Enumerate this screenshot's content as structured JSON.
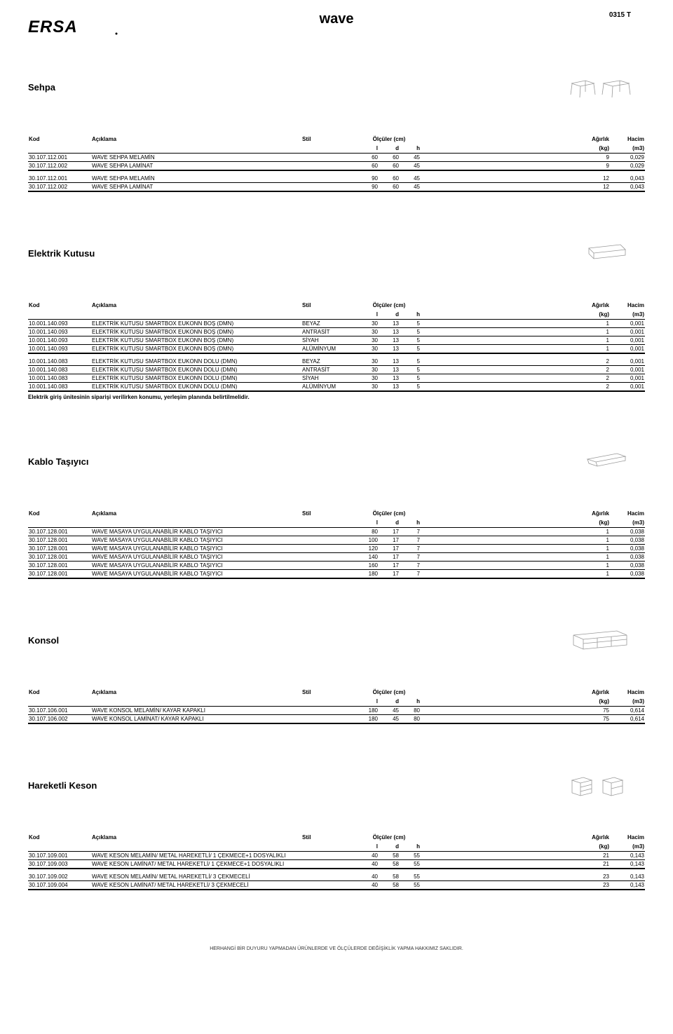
{
  "header": {
    "title": "wave",
    "code": "0315 T",
    "logo": "ERSA"
  },
  "labels": {
    "kod": "Kod",
    "aciklama": "Açıklama",
    "stil": "Stil",
    "olculer": "Ölçüler (cm)",
    "l": "l",
    "d": "d",
    "h": "h",
    "agirlik": "Ağırlık",
    "kg": "(kg)",
    "hacim": "Hacim",
    "m3": "(m3)"
  },
  "sections": [
    {
      "title": "Sehpa",
      "groups": [
        [
          {
            "kod": "30.107.112.001",
            "acik": "WAVE SEHPA MELAMİN",
            "stil": "",
            "l": "60",
            "d": "60",
            "h": "45",
            "ag": "9",
            "ha": "0,029"
          },
          {
            "kod": "30.107.112.002",
            "acik": "WAVE SEHPA LAMİNAT",
            "stil": "",
            "l": "60",
            "d": "60",
            "h": "45",
            "ag": "9",
            "ha": "0,029"
          }
        ],
        [
          {
            "kod": "30.107.112.001",
            "acik": "WAVE SEHPA MELAMİN",
            "stil": "",
            "l": "90",
            "d": "60",
            "h": "45",
            "ag": "12",
            "ha": "0,043"
          },
          {
            "kod": "30.107.112.002",
            "acik": "WAVE SEHPA LAMİNAT",
            "stil": "",
            "l": "90",
            "d": "60",
            "h": "45",
            "ag": "12",
            "ha": "0,043"
          }
        ]
      ]
    },
    {
      "title": "Elektrik Kutusu",
      "groups": [
        [
          {
            "kod": "10.001.140.093",
            "acik": "ELEKTRİK KUTUSU SMARTBOX EUKONN BOŞ (DMN)",
            "stil": "BEYAZ",
            "l": "30",
            "d": "13",
            "h": "5",
            "ag": "1",
            "ha": "0,001"
          },
          {
            "kod": "10.001.140.093",
            "acik": "ELEKTRİK KUTUSU SMARTBOX EUKONN BOŞ (DMN)",
            "stil": "ANTRASİT",
            "l": "30",
            "d": "13",
            "h": "5",
            "ag": "1",
            "ha": "0,001"
          },
          {
            "kod": "10.001.140.093",
            "acik": "ELEKTRİK KUTUSU SMARTBOX EUKONN BOŞ (DMN)",
            "stil": "SİYAH",
            "l": "30",
            "d": "13",
            "h": "5",
            "ag": "1",
            "ha": "0,001"
          },
          {
            "kod": "10.001.140.093",
            "acik": "ELEKTRİK KUTUSU SMARTBOX EUKONN BOŞ (DMN)",
            "stil": "ALÜMİNYUM",
            "l": "30",
            "d": "13",
            "h": "5",
            "ag": "1",
            "ha": "0,001"
          }
        ],
        [
          {
            "kod": "10.001.140.083",
            "acik": "ELEKTRİK KUTUSU SMARTBOX EUKONN DOLU (DMN)",
            "stil": "BEYAZ",
            "l": "30",
            "d": "13",
            "h": "5",
            "ag": "2",
            "ha": "0,001"
          },
          {
            "kod": "10.001.140.083",
            "acik": "ELEKTRİK KUTUSU SMARTBOX EUKONN DOLU (DMN)",
            "stil": "ANTRASİT",
            "l": "30",
            "d": "13",
            "h": "5",
            "ag": "2",
            "ha": "0,001"
          },
          {
            "kod": "10.001.140.083",
            "acik": "ELEKTRİK KUTUSU SMARTBOX EUKONN DOLU (DMN)",
            "stil": "SİYAH",
            "l": "30",
            "d": "13",
            "h": "5",
            "ag": "2",
            "ha": "0,001"
          },
          {
            "kod": "10.001.140.083",
            "acik": "ELEKTRİK KUTUSU SMARTBOX EUKONN DOLU (DMN)",
            "stil": "ALÜMİNYUM",
            "l": "30",
            "d": "13",
            "h": "5",
            "ag": "2",
            "ha": "0,001"
          }
        ]
      ],
      "note": "Elektrik giriş ünitesinin siparişi verilirken konumu, yerleşim planında belirtilmelidir."
    },
    {
      "title": "Kablo Taşıyıcı",
      "groups": [
        [
          {
            "kod": "30.107.128.001",
            "acik": "WAVE MASAYA UYGULANABİLİR KABLO TAŞIYICI",
            "stil": "",
            "l": "80",
            "d": "17",
            "h": "7",
            "ag": "1",
            "ha": "0,038"
          },
          {
            "kod": "30.107.128.001",
            "acik": "WAVE MASAYA UYGULANABİLİR KABLO TAŞIYICI",
            "stil": "",
            "l": "100",
            "d": "17",
            "h": "7",
            "ag": "1",
            "ha": "0,038"
          },
          {
            "kod": "30.107.128.001",
            "acik": "WAVE MASAYA UYGULANABİLİR KABLO TAŞIYICI",
            "stil": "",
            "l": "120",
            "d": "17",
            "h": "7",
            "ag": "1",
            "ha": "0,038"
          },
          {
            "kod": "30.107.128.001",
            "acik": "WAVE MASAYA UYGULANABİLİR KABLO TAŞIYICI",
            "stil": "",
            "l": "140",
            "d": "17",
            "h": "7",
            "ag": "1",
            "ha": "0,038"
          },
          {
            "kod": "30.107.128.001",
            "acik": "WAVE MASAYA UYGULANABİLİR KABLO TAŞIYICI",
            "stil": "",
            "l": "160",
            "d": "17",
            "h": "7",
            "ag": "1",
            "ha": "0,038"
          },
          {
            "kod": "30.107.128.001",
            "acik": "WAVE MASAYA UYGULANABİLİR KABLO TAŞIYICI",
            "stil": "",
            "l": "180",
            "d": "17",
            "h": "7",
            "ag": "1",
            "ha": "0,038"
          }
        ]
      ]
    },
    {
      "title": "Konsol",
      "groups": [
        [
          {
            "kod": "30.107.106.001",
            "acik": "WAVE KONSOL MELAMİN/ KAYAR KAPAKLI",
            "stil": "",
            "l": "180",
            "d": "45",
            "h": "80",
            "ag": "75",
            "ha": "0,614"
          },
          {
            "kod": "30.107.106.002",
            "acik": "WAVE KONSOL LAMİNAT/ KAYAR KAPAKLI",
            "stil": "",
            "l": "180",
            "d": "45",
            "h": "80",
            "ag": "75",
            "ha": "0,614"
          }
        ]
      ]
    },
    {
      "title": "Hareketli Keson",
      "groups": [
        [
          {
            "kod": "30.107.109.001",
            "acik": "WAVE KESON MELAMİN/ METAL HAREKETLİ/ 1 ÇEKMECE+1 DOSYALIKLI",
            "stil": "",
            "l": "40",
            "d": "58",
            "h": "55",
            "ag": "21",
            "ha": "0,143"
          },
          {
            "kod": "30.107.109.003",
            "acik": "WAVE KESON LAMİNAT/ METAL HAREKETLİ/ 1 ÇEKMECE+1 DOSYALIKLI",
            "stil": "",
            "l": "40",
            "d": "58",
            "h": "55",
            "ag": "21",
            "ha": "0,143"
          }
        ],
        [
          {
            "kod": "30.107.109.002",
            "acik": "WAVE KESON MELAMİN/ METAL HAREKETLİ/ 3 ÇEKMECELİ",
            "stil": "",
            "l": "40",
            "d": "58",
            "h": "55",
            "ag": "23",
            "ha": "0,143"
          },
          {
            "kod": "30.107.109.004",
            "acik": "WAVE KESON LAMİNAT/ METAL HAREKETLİ/ 3 ÇEKMECELİ",
            "stil": "",
            "l": "40",
            "d": "58",
            "h": "55",
            "ag": "23",
            "ha": "0,143"
          }
        ]
      ]
    }
  ],
  "footer": "HERHANGİ BİR DUYURU YAPMADAN ÜRÜNLERDE VE ÖLÇÜLERDE DEĞİŞİKLİK YAPMA HAKKIMIZ SAKLIDIR."
}
